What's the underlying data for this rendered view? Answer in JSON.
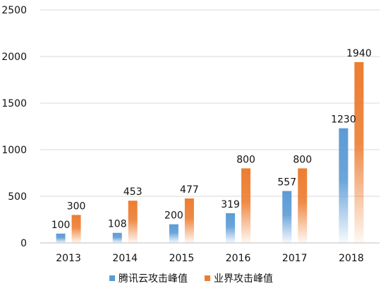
{
  "chart_data": {
    "type": "bar",
    "title": "",
    "xlabel": "",
    "ylabel": "",
    "categories": [
      "2013",
      "2014",
      "2015",
      "2016",
      "2017",
      "2018"
    ],
    "series": [
      {
        "name": "腾讯云攻击峰值",
        "values": [
          100,
          108,
          200,
          319,
          557,
          1230
        ],
        "color": "#5b9bd5"
      },
      {
        "name": "业界攻击峰值",
        "values": [
          300,
          453,
          477,
          800,
          800,
          1940
        ],
        "color": "#ed7d31"
      }
    ],
    "ylim": [
      0,
      2500
    ],
    "yticks": [
      0,
      500,
      1000,
      1500,
      2000,
      2500
    ],
    "grid": true,
    "legend": "bottom",
    "gradient_fill": true
  }
}
